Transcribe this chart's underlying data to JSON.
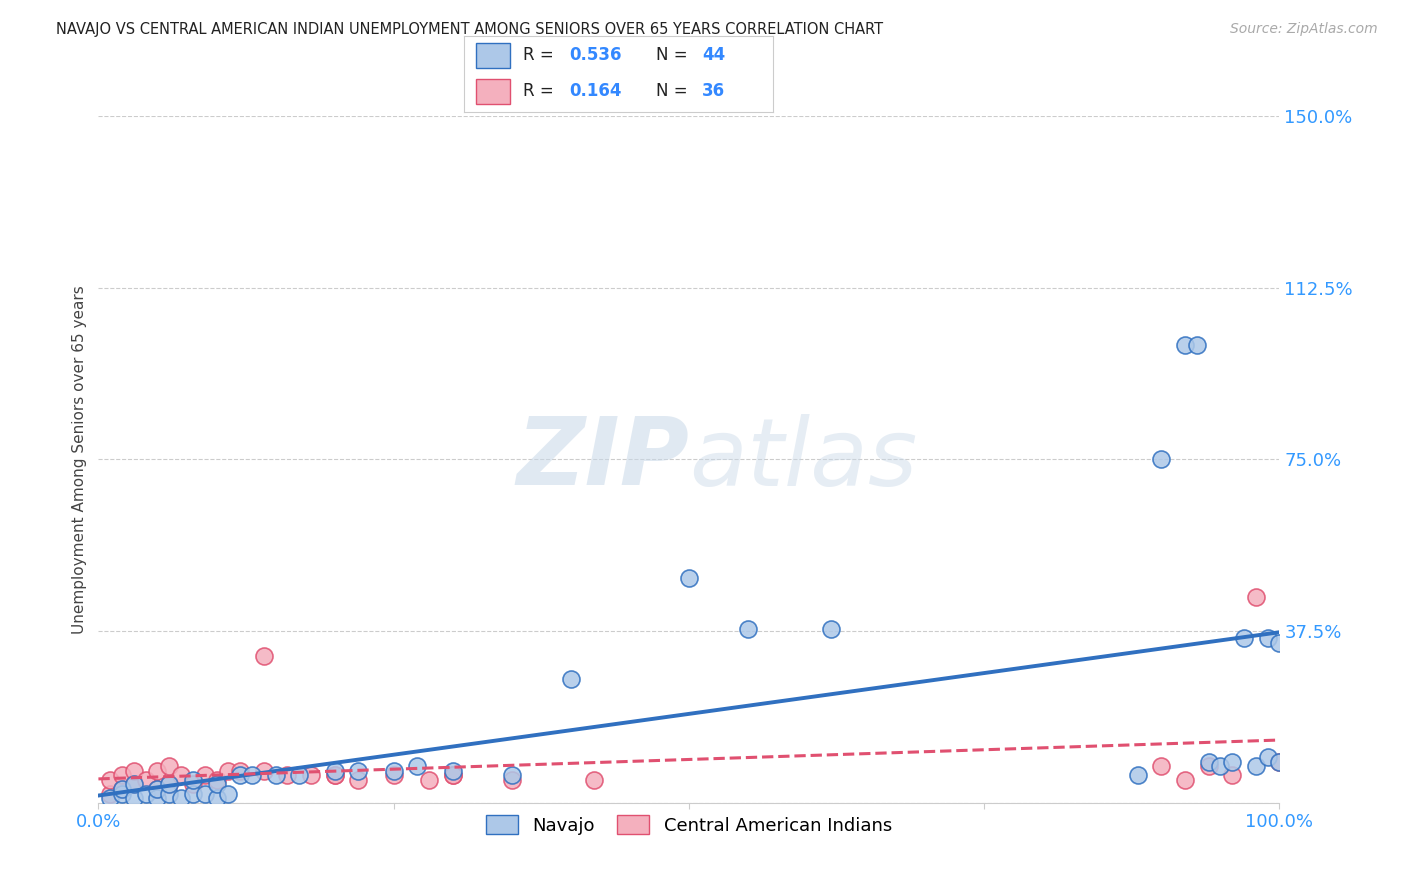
{
  "title": "NAVAJO VS CENTRAL AMERICAN INDIAN UNEMPLOYMENT AMONG SENIORS OVER 65 YEARS CORRELATION CHART",
  "source": "Source: ZipAtlas.com",
  "ylabel": "Unemployment Among Seniors over 65 years",
  "xlim": [
    0.0,
    1.0
  ],
  "ylim": [
    0.0,
    1.5
  ],
  "xticks": [
    0.0,
    0.25,
    0.5,
    0.75,
    1.0
  ],
  "xtick_labels": [
    "0.0%",
    "",
    "",
    "",
    "100.0%"
  ],
  "ytick_labels": [
    "",
    "37.5%",
    "75.0%",
    "112.5%",
    "150.0%"
  ],
  "yticks": [
    0.0,
    0.375,
    0.75,
    1.125,
    1.5
  ],
  "navajo_R": 0.536,
  "navajo_N": 44,
  "cai_R": 0.164,
  "cai_N": 36,
  "navajo_color": "#adc8e8",
  "navajo_line_color": "#3070c0",
  "cai_color": "#f4b0be",
  "cai_line_color": "#e05070",
  "navajo_x": [
    0.01,
    0.02,
    0.02,
    0.03,
    0.03,
    0.04,
    0.05,
    0.05,
    0.06,
    0.06,
    0.07,
    0.08,
    0.08,
    0.09,
    0.1,
    0.1,
    0.11,
    0.12,
    0.13,
    0.15,
    0.17,
    0.2,
    0.22,
    0.25,
    0.27,
    0.3,
    0.35,
    0.4,
    0.5,
    0.55,
    0.62,
    0.88,
    0.9,
    0.92,
    0.93,
    0.94,
    0.95,
    0.96,
    0.97,
    0.98,
    0.99,
    0.99,
    1.0,
    1.0
  ],
  "navajo_y": [
    0.01,
    0.02,
    0.03,
    0.01,
    0.04,
    0.02,
    0.01,
    0.03,
    0.02,
    0.04,
    0.01,
    0.02,
    0.05,
    0.02,
    0.01,
    0.04,
    0.02,
    0.06,
    0.06,
    0.06,
    0.06,
    0.07,
    0.07,
    0.07,
    0.08,
    0.07,
    0.06,
    0.27,
    0.49,
    0.38,
    0.38,
    0.06,
    0.75,
    1.0,
    1.0,
    0.09,
    0.08,
    0.09,
    0.36,
    0.08,
    0.1,
    0.36,
    0.35,
    0.09
  ],
  "cai_x": [
    0.01,
    0.01,
    0.02,
    0.02,
    0.03,
    0.03,
    0.04,
    0.05,
    0.05,
    0.06,
    0.06,
    0.07,
    0.08,
    0.09,
    0.1,
    0.11,
    0.12,
    0.14,
    0.16,
    0.18,
    0.2,
    0.22,
    0.25,
    0.28,
    0.3,
    0.35,
    0.14,
    0.2,
    0.3,
    0.42,
    0.9,
    0.92,
    0.94,
    0.96,
    0.98,
    1.0
  ],
  "cai_y": [
    0.02,
    0.05,
    0.03,
    0.06,
    0.04,
    0.07,
    0.05,
    0.03,
    0.07,
    0.04,
    0.08,
    0.06,
    0.04,
    0.06,
    0.05,
    0.07,
    0.07,
    0.07,
    0.06,
    0.06,
    0.06,
    0.05,
    0.06,
    0.05,
    0.06,
    0.05,
    0.32,
    0.06,
    0.06,
    0.05,
    0.08,
    0.05,
    0.08,
    0.06,
    0.45,
    0.09
  ],
  "watermark_zip": "ZIP",
  "watermark_atlas": "atlas",
  "background_color": "#ffffff",
  "grid_color": "#cccccc",
  "legend_navajo_label": "Navajo",
  "legend_cai_label": "Central American Indians"
}
